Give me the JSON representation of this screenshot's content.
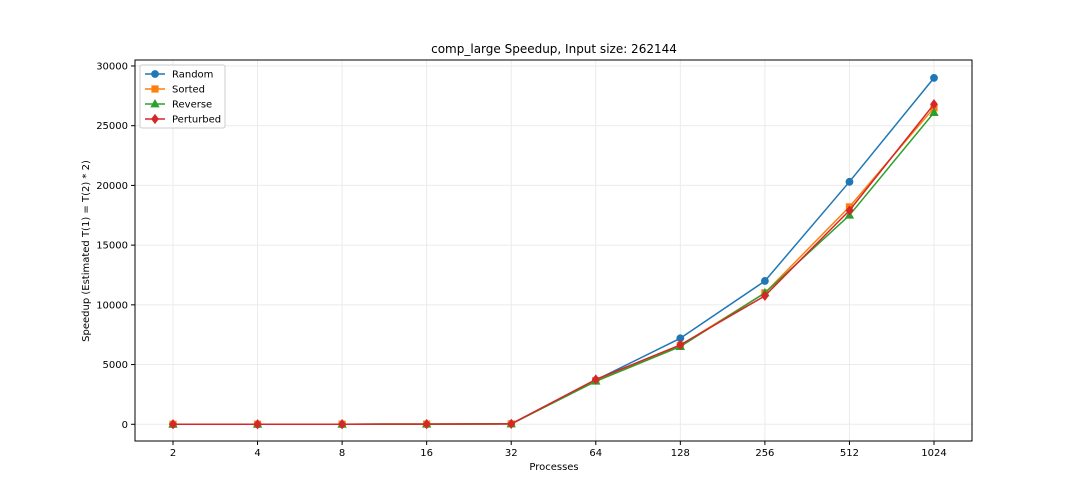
{
  "chart_data": {
    "type": "line",
    "title": "comp_large Speedup, Input size: 262144",
    "xlabel": "Processes",
    "ylabel": "Speedup (Estimated T(1) = T(2) * 2)",
    "categories": [
      "2",
      "4",
      "8",
      "16",
      "32",
      "64",
      "128",
      "256",
      "512",
      "1024"
    ],
    "ylim": [
      -1400,
      30500
    ],
    "yticks": [
      0,
      5000,
      10000,
      15000,
      20000,
      25000,
      30000
    ],
    "grid": true,
    "legend_position": "top-left",
    "series": [
      {
        "name": "Random",
        "color": "#1f77b4",
        "marker": "circle",
        "values": [
          2,
          4,
          8,
          16,
          32,
          3700,
          7200,
          12000,
          20300,
          29000
        ]
      },
      {
        "name": "Sorted",
        "color": "#ff7f0e",
        "marker": "square",
        "values": [
          2,
          4,
          8,
          16,
          32,
          3650,
          6600,
          11000,
          18200,
          26500
        ]
      },
      {
        "name": "Reverse",
        "color": "#2ca02c",
        "marker": "triangle",
        "values": [
          2,
          4,
          8,
          16,
          32,
          3600,
          6500,
          11000,
          17500,
          26100
        ]
      },
      {
        "name": "Perturbed",
        "color": "#d62728",
        "marker": "diamond",
        "values": [
          2,
          4,
          8,
          16,
          32,
          3750,
          6650,
          10750,
          17900,
          26800
        ]
      }
    ]
  }
}
